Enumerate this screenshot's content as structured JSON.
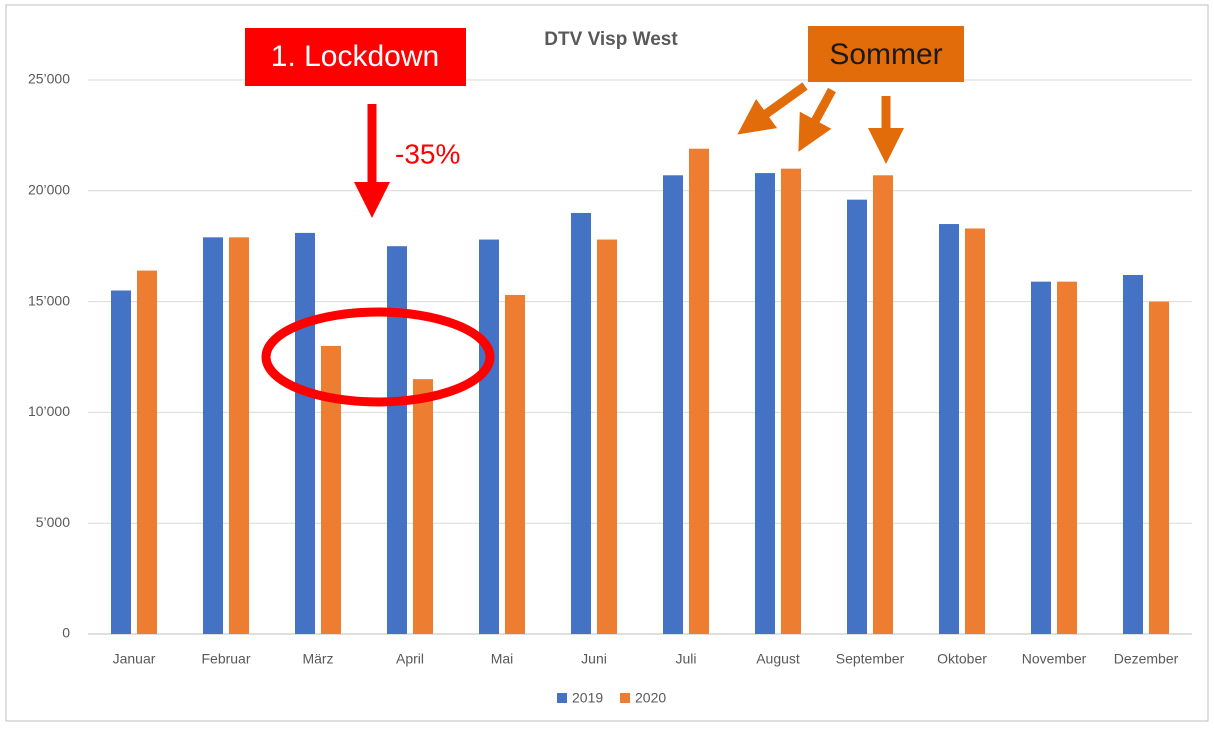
{
  "chart_data": {
    "type": "bar",
    "title": "DTV Visp West",
    "categories": [
      "Januar",
      "Februar",
      "März",
      "April",
      "Mai",
      "Juni",
      "Juli",
      "August",
      "September",
      "Oktober",
      "November",
      "Dezember"
    ],
    "series": [
      {
        "name": "2019",
        "color": "#4472c4",
        "values": [
          15500,
          17900,
          18100,
          17500,
          17800,
          19000,
          20700,
          20800,
          19600,
          18500,
          15900,
          16200
        ]
      },
      {
        "name": "2020",
        "color": "#ed7d31",
        "values": [
          16400,
          17900,
          13000,
          11500,
          15300,
          17800,
          21900,
          21000,
          20700,
          18300,
          15900,
          15000
        ]
      }
    ],
    "ylim": [
      0,
      25000
    ],
    "yticks": [
      0,
      {
        "value": 5000,
        "label": "5’000"
      },
      {
        "value": 10000,
        "label": "10’000"
      },
      {
        "value": 15000,
        "label": "15’000"
      },
      {
        "value": 20000,
        "label": "20’000"
      },
      {
        "value": 25000,
        "label": "25’000"
      }
    ],
    "grid": true,
    "legend": "bottom",
    "annotations": [
      "1. Lockdown",
      "-35%",
      "Sommer"
    ]
  }
}
